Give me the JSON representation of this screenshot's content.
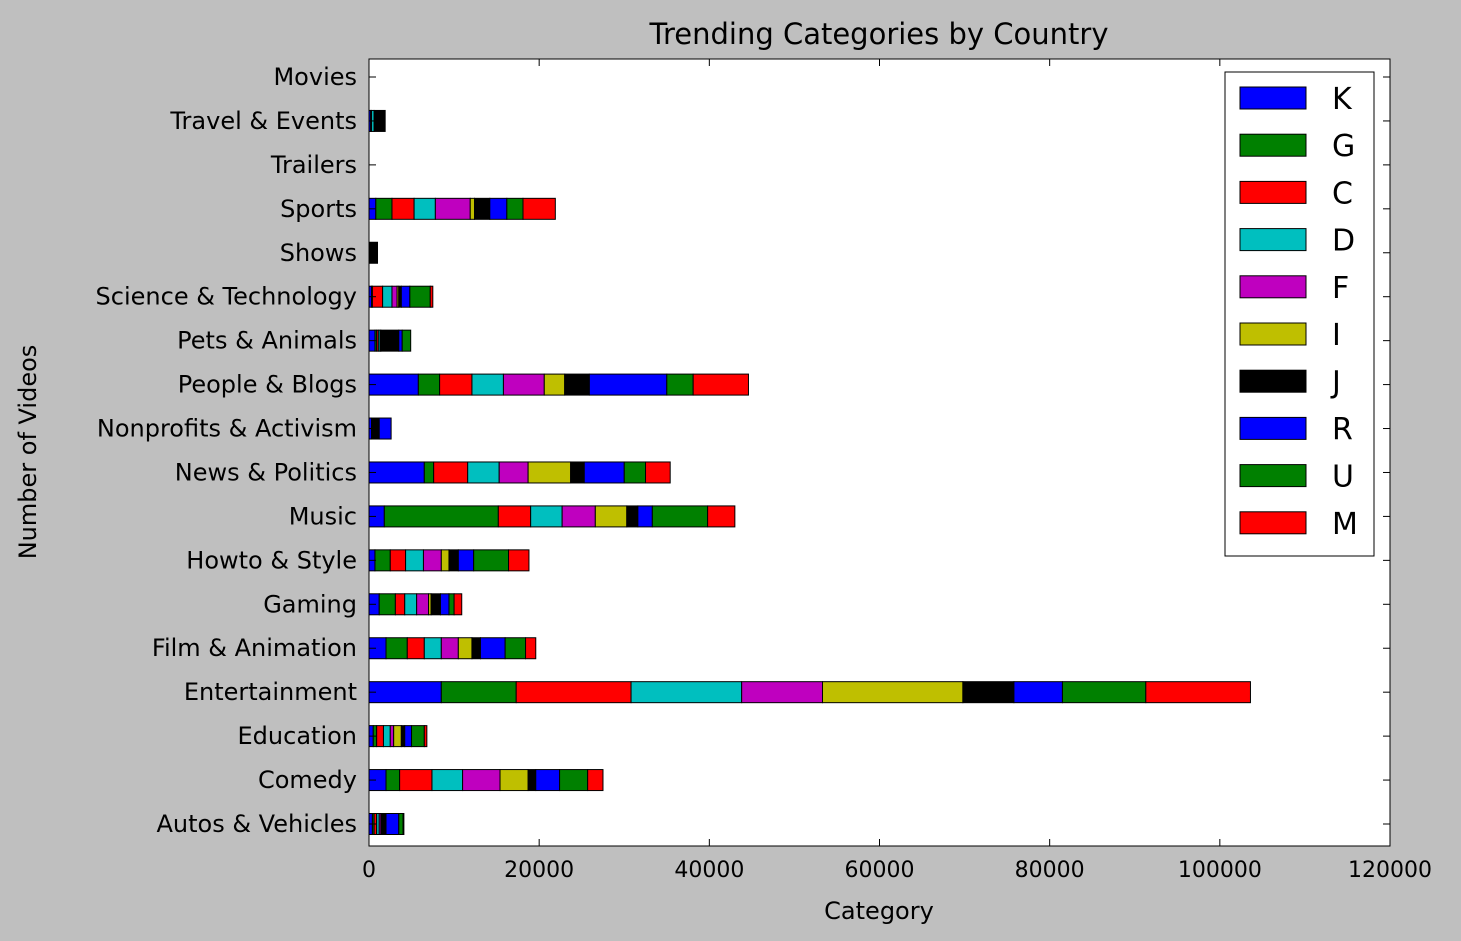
{
  "chart_data": {
    "type": "bar",
    "orientation": "horizontal",
    "stacked": true,
    "title": "Trending Categories by Country",
    "xlabel": "Category",
    "ylabel": "Number of Videos",
    "xlim": [
      0,
      120000
    ],
    "xticks": [
      0,
      20000,
      40000,
      60000,
      80000,
      100000,
      120000
    ],
    "grid": false,
    "legend_position": "top-right",
    "background": "#bfbfbf",
    "plot_background": "#ffffff",
    "categories": [
      "Autos & Vehicles",
      "Comedy",
      "Education",
      "Entertainment",
      "Film & Animation",
      "Gaming",
      "Howto & Style",
      "Music",
      "News & Politics",
      "Nonprofits & Activism",
      "People & Blogs",
      "Pets & Animals",
      "Science & Technology",
      "Shows",
      "Sports",
      "Trailers",
      "Travel & Events",
      "Movies"
    ],
    "series": [
      {
        "name": "K",
        "color": "#0000ff",
        "values": [
          400,
          2000,
          500,
          8500,
          2000,
          1200,
          700,
          1800,
          6500,
          300,
          5800,
          700,
          300,
          0,
          800,
          0,
          200,
          0
        ]
      },
      {
        "name": "G",
        "color": "#008000",
        "values": [
          200,
          1600,
          400,
          8800,
          2500,
          1900,
          1800,
          13400,
          1100,
          0,
          2500,
          200,
          100,
          0,
          1900,
          0,
          100,
          0
        ]
      },
      {
        "name": "C",
        "color": "#ff0000",
        "values": [
          300,
          3800,
          800,
          13500,
          2000,
          1100,
          1800,
          3800,
          4000,
          0,
          3800,
          200,
          1200,
          0,
          2600,
          0,
          0,
          0
        ]
      },
      {
        "name": "D",
        "color": "#00bfbf",
        "values": [
          300,
          3600,
          800,
          13000,
          2000,
          1400,
          2100,
          3700,
          3700,
          0,
          3700,
          200,
          1100,
          0,
          2500,
          0,
          300,
          0
        ]
      },
      {
        "name": "F",
        "color": "#bf00bf",
        "values": [
          200,
          4400,
          400,
          9500,
          2000,
          1400,
          2100,
          3900,
          3400,
          0,
          4800,
          100,
          600,
          0,
          4100,
          0,
          0,
          0
        ]
      },
      {
        "name": "I",
        "color": "#bfbf00",
        "values": [
          100,
          3300,
          900,
          16500,
          1600,
          300,
          900,
          3700,
          5000,
          0,
          2400,
          0,
          200,
          0,
          500,
          0,
          0,
          0
        ]
      },
      {
        "name": "J",
        "color": "#000000",
        "values": [
          500,
          900,
          400,
          6000,
          1000,
          1100,
          1100,
          1300,
          1600,
          900,
          2900,
          2100,
          300,
          1000,
          1800,
          0,
          1300,
          0
        ]
      },
      {
        "name": "R",
        "color": "#0000ff",
        "values": [
          1500,
          2800,
          800,
          5700,
          2900,
          1000,
          1800,
          1700,
          4700,
          1400,
          9100,
          400,
          1000,
          0,
          2000,
          0,
          0,
          0
        ]
      },
      {
        "name": "U",
        "color": "#008000",
        "values": [
          500,
          3300,
          1500,
          9800,
          2400,
          600,
          4100,
          6500,
          2500,
          0,
          3100,
          1000,
          2400,
          0,
          1900,
          0,
          0,
          0
        ]
      },
      {
        "name": "M",
        "color": "#ff0000",
        "values": [
          100,
          1800,
          300,
          12300,
          1200,
          900,
          2400,
          3200,
          2900,
          0,
          6500,
          0,
          300,
          0,
          3800,
          0,
          0,
          0
        ]
      }
    ]
  }
}
